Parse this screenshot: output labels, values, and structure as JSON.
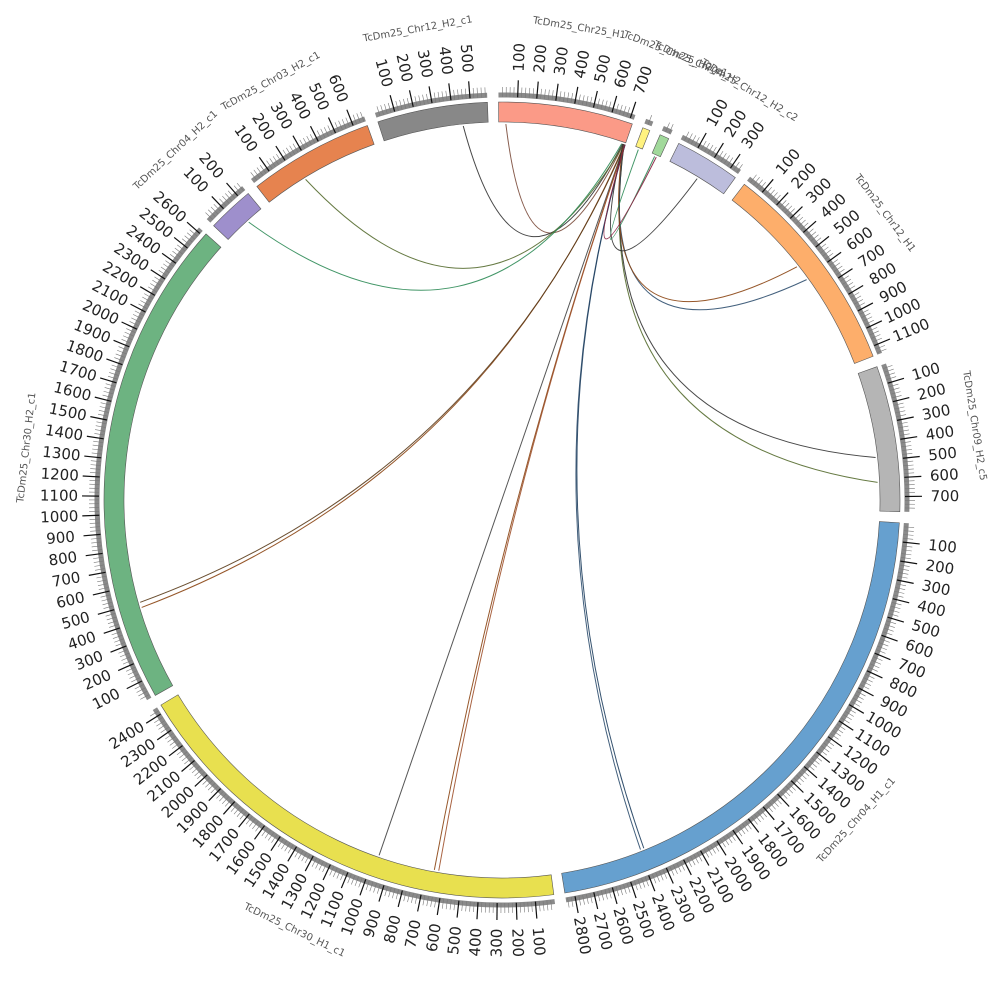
{
  "chart_data": {
    "type": "circos",
    "tick_step": 100,
    "segments": [
      {
        "name": "TcDm25_Chr25_H1",
        "length": 720,
        "color": "#fb9a87"
      },
      {
        "name": "TcDm25_Chr25_H2_c1",
        "length": 40,
        "color": "#fff27f"
      },
      {
        "name": "TcDm25_Chr04_H2",
        "length": 50,
        "color": "#a1d99b"
      },
      {
        "name": "TcDm25_Chr12_H2_c2",
        "length": 350,
        "color": "#bcbddc"
      },
      {
        "name": "TcDm25_Chr12_H1",
        "length": 1150,
        "color": "#fdae6b"
      },
      {
        "name": "TcDm25_Chr09_H2_c5",
        "length": 780,
        "color": "#b5b5b5"
      },
      {
        "name": "TcDm25_Chr04_H1_c1",
        "length": 2850,
        "color": "#66a0cf"
      },
      {
        "name": "TcDm25_Chr30_H1_c1",
        "length": 2440,
        "color": "#e8e04f"
      },
      {
        "name": "TcDm25_Chr30_H2_c1",
        "length": 2620,
        "color": "#6db381"
      },
      {
        "name": "TcDm25_Chr04_H2_c1",
        "length": 250,
        "color": "#9e8fcc"
      },
      {
        "name": "TcDm25_Chr03_H2_c1",
        "length": 670,
        "color": "#e6834f"
      },
      {
        "name": "TcDm25_Chr12_H2_c1",
        "length": 590,
        "color": "#888888"
      }
    ],
    "links": [
      {
        "from": [
          "TcDm25_Chr25_H1",
          710
        ],
        "to": [
          "TcDm25_Chr25_H1",
          40
        ],
        "color": "#7a4a3a"
      },
      {
        "from": [
          "TcDm25_Chr25_H1",
          705
        ],
        "to": [
          "TcDm25_Chr12_H2_c1",
          450
        ],
        "color": "#333333"
      },
      {
        "from": [
          "TcDm25_Chr25_H1",
          712
        ],
        "to": [
          "TcDm25_Chr03_H2_c1",
          240
        ],
        "color": "#556b2f"
      },
      {
        "from": [
          "TcDm25_Chr25_H1",
          700
        ],
        "to": [
          "TcDm25_Chr04_H2_c1",
          150
        ],
        "color": "#2e8b57"
      },
      {
        "from": [
          "TcDm25_Chr25_H1",
          715
        ],
        "to": [
          "TcDm25_Chr30_H2_c1",
          470
        ],
        "color": "#8b4513"
      },
      {
        "from": [
          "TcDm25_Chr25_H1",
          718
        ],
        "to": [
          "TcDm25_Chr30_H2_c1",
          500
        ],
        "color": "#5a3b1a"
      },
      {
        "from": [
          "TcDm25_Chr25_H1",
          716
        ],
        "to": [
          "TcDm25_Chr30_H1_c1",
          975
        ],
        "color": "#444444"
      },
      {
        "from": [
          "TcDm25_Chr25_H1",
          718
        ],
        "to": [
          "TcDm25_Chr30_H1_c1",
          655
        ],
        "color": "#8b4513"
      },
      {
        "from": [
          "TcDm25_Chr25_H1",
          719
        ],
        "to": [
          "TcDm25_Chr30_H1_c1",
          630
        ],
        "color": "#a0522d"
      },
      {
        "from": [
          "TcDm25_Chr25_H1",
          719
        ],
        "to": [
          "TcDm25_Chr04_H1_c1",
          2390
        ],
        "color": "#2f4f6f"
      },
      {
        "from": [
          "TcDm25_Chr25_H1",
          720
        ],
        "to": [
          "TcDm25_Chr04_H1_c1",
          2370
        ],
        "color": "#1f3f5f"
      },
      {
        "from": [
          "TcDm25_Chr25_H1",
          714
        ],
        "to": [
          "TcDm25_Chr09_H2_c5",
          620
        ],
        "color": "#556b2f"
      },
      {
        "from": [
          "TcDm25_Chr25_H1",
          713
        ],
        "to": [
          "TcDm25_Chr09_H2_c5",
          480
        ],
        "color": "#333333"
      },
      {
        "from": [
          "TcDm25_Chr25_H1",
          711
        ],
        "to": [
          "TcDm25_Chr12_H1",
          610
        ],
        "color": "#2f4f6f"
      },
      {
        "from": [
          "TcDm25_Chr25_H1",
          709
        ],
        "to": [
          "TcDm25_Chr12_H1",
          520
        ],
        "color": "#8b4513"
      },
      {
        "from": [
          "TcDm25_Chr25_H1",
          708
        ],
        "to": [
          "TcDm25_Chr12_H2_c2",
          180
        ],
        "color": "#333333"
      },
      {
        "from": [
          "TcDm25_Chr25_H2_c1",
          20
        ],
        "to": [
          "TcDm25_Chr04_H2",
          20
        ],
        "color": "#2e8b57"
      },
      {
        "from": [
          "TcDm25_Chr04_H2",
          30
        ],
        "to": [
          "TcDm25_Chr25_H1",
          719
        ],
        "color": "#8b2040"
      }
    ]
  }
}
